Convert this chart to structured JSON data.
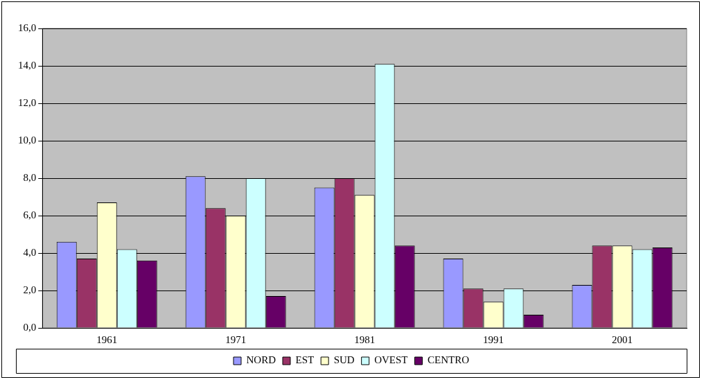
{
  "chart_data": {
    "type": "bar",
    "categories": [
      "1961",
      "1971",
      "1981",
      "1991",
      "2001"
    ],
    "series": [
      {
        "name": "NORD",
        "color": "#9999ff",
        "values": [
          4.6,
          8.1,
          7.5,
          3.7,
          2.3
        ]
      },
      {
        "name": "EST",
        "color": "#993366",
        "values": [
          3.7,
          6.4,
          8.0,
          2.1,
          4.4
        ]
      },
      {
        "name": "SUD",
        "color": "#ffffcc",
        "values": [
          6.7,
          6.0,
          7.1,
          1.4,
          4.4
        ]
      },
      {
        "name": "OVEST",
        "color": "#ccffff",
        "values": [
          4.2,
          8.0,
          14.1,
          2.1,
          4.2
        ]
      },
      {
        "name": "CENTRO",
        "color": "#660066",
        "values": [
          3.6,
          1.7,
          4.4,
          0.7,
          4.3
        ]
      }
    ],
    "ylim": [
      0,
      16
    ],
    "yticks": [
      {
        "value": 0,
        "label": "0,0"
      },
      {
        "value": 2,
        "label": "2,0"
      },
      {
        "value": 4,
        "label": "4,0"
      },
      {
        "value": 6,
        "label": "6,0"
      },
      {
        "value": 8,
        "label": "8,0"
      },
      {
        "value": 10,
        "label": "10,0"
      },
      {
        "value": 12,
        "label": "12,0"
      },
      {
        "value": 14,
        "label": "14,0"
      },
      {
        "value": 16,
        "label": "16,0"
      }
    ],
    "grid": "y",
    "legend": "bottom"
  }
}
